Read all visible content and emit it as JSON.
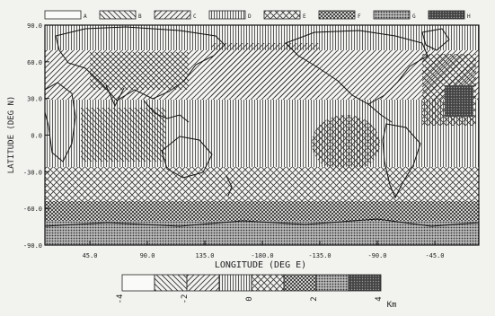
{
  "legend_top": {
    "classes": [
      {
        "letter": "A",
        "pattern": "blank"
      },
      {
        "letter": "B",
        "pattern": "diag-back"
      },
      {
        "letter": "C",
        "pattern": "diag-fwd"
      },
      {
        "letter": "D",
        "pattern": "vertical"
      },
      {
        "letter": "E",
        "pattern": "cross"
      },
      {
        "letter": "F",
        "pattern": "dense-cross"
      },
      {
        "letter": "G",
        "pattern": "dots"
      },
      {
        "letter": "H",
        "pattern": "dark"
      }
    ]
  },
  "map": {
    "y_title": "LATITUDE (DEG N)",
    "x_title": "LONGITUDE (DEG E)",
    "y_ticks": [
      "90.0",
      "60.0",
      "30.0",
      "0.0",
      "-30.0",
      "-60.0",
      "-90.0"
    ],
    "x_ticks": [
      "45.0",
      "90.0",
      "135.0",
      "-180.0",
      "-135.0",
      "-90.0",
      "-45.0"
    ]
  },
  "scale_bar": {
    "tick_labels": [
      "-4",
      "-2",
      "0",
      "2",
      "4"
    ],
    "unit": "Km",
    "patterns": [
      "blank",
      "diag-back",
      "diag-fwd",
      "vertical",
      "cross",
      "dense-cross",
      "dots",
      "dark"
    ]
  }
}
